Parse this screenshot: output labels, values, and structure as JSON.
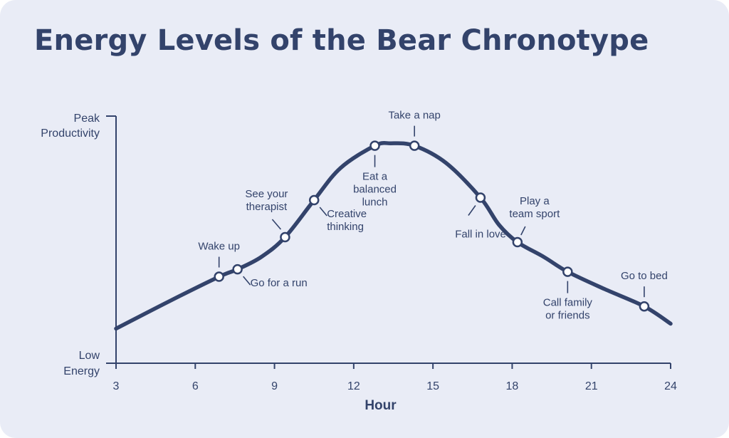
{
  "title": "Energy Levels of the Bear Chronotype",
  "colors": {
    "background": "#e9ecf6",
    "ink": "#33436b",
    "marker_fill": "#ffffff"
  },
  "chart_data": {
    "type": "line",
    "title": "Energy Levels of the Bear Chronotype",
    "xlabel": "Hour",
    "ylabel": "",
    "xlim": [
      3,
      24
    ],
    "x_ticks": [
      3,
      6,
      9,
      12,
      15,
      18,
      21,
      24
    ],
    "y_axis_labels": {
      "top": [
        "Peak",
        "Productivity"
      ],
      "bottom": [
        "Low",
        "Energy"
      ]
    },
    "ylim": [
      0,
      1
    ],
    "grid": false,
    "curve": [
      {
        "x": 3,
        "y": 0.14
      },
      {
        "x": 5,
        "y": 0.25
      },
      {
        "x": 6.9,
        "y": 0.35
      },
      {
        "x": 7.6,
        "y": 0.38
      },
      {
        "x": 8.5,
        "y": 0.43
      },
      {
        "x": 9.4,
        "y": 0.51
      },
      {
        "x": 10.5,
        "y": 0.66
      },
      {
        "x": 11.5,
        "y": 0.79
      },
      {
        "x": 12.8,
        "y": 0.88
      },
      {
        "x": 13.4,
        "y": 0.89
      },
      {
        "x": 14.3,
        "y": 0.88
      },
      {
        "x": 15.5,
        "y": 0.81
      },
      {
        "x": 16.8,
        "y": 0.67
      },
      {
        "x": 17.5,
        "y": 0.56
      },
      {
        "x": 18.2,
        "y": 0.49
      },
      {
        "x": 19.2,
        "y": 0.43
      },
      {
        "x": 20.1,
        "y": 0.37
      },
      {
        "x": 21.5,
        "y": 0.3
      },
      {
        "x": 23,
        "y": 0.23
      },
      {
        "x": 24,
        "y": 0.16
      }
    ],
    "annotations": [
      {
        "x": 6.9,
        "y": 0.35,
        "label": [
          "Wake up"
        ],
        "position": "above"
      },
      {
        "x": 7.6,
        "y": 0.38,
        "label": [
          "Go for a run"
        ],
        "position": "below-right"
      },
      {
        "x": 9.4,
        "y": 0.51,
        "label": [
          "See your",
          "therapist"
        ],
        "position": "above-left"
      },
      {
        "x": 10.5,
        "y": 0.66,
        "label": [
          "Creative",
          "thinking"
        ],
        "position": "below-right"
      },
      {
        "x": 12.8,
        "y": 0.88,
        "label": [
          "Eat a",
          "balanced",
          "lunch"
        ],
        "position": "below"
      },
      {
        "x": 14.3,
        "y": 0.88,
        "label": [
          "Take a nap"
        ],
        "position": "above"
      },
      {
        "x": 16.8,
        "y": 0.67,
        "label": [
          "Fall in love"
        ],
        "position": "below-left"
      },
      {
        "x": 18.2,
        "y": 0.49,
        "label": [
          "Play a",
          "team sport"
        ],
        "position": "above-right"
      },
      {
        "x": 20.1,
        "y": 0.37,
        "label": [
          "Call family",
          "or friends"
        ],
        "position": "below"
      },
      {
        "x": 23,
        "y": 0.23,
        "label": [
          "Go to bed"
        ],
        "position": "above"
      }
    ]
  }
}
